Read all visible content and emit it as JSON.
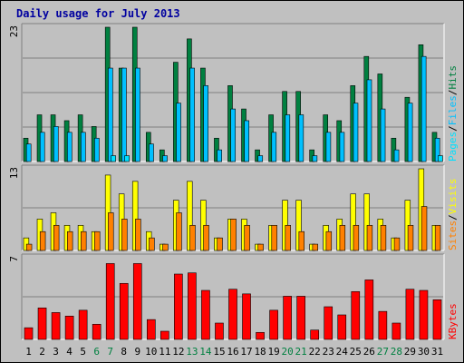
{
  "title": "Daily usage for July 2013",
  "colors": {
    "title": "#0000a0",
    "hits": "#008040",
    "files": "#00c0ff",
    "pages": "#00e0ff",
    "visits": "#ffff00",
    "sites": "#ff8000",
    "kbytes": "#ff0000",
    "weekend_label": "#008040",
    "weekday_label": "#000000"
  },
  "chart_data": [
    {
      "type": "bar",
      "panel": "top",
      "ymax_label": "23",
      "ylim": [
        0,
        23
      ],
      "legend": [
        {
          "label": "Pages",
          "color_key": "pages"
        },
        {
          "label": "Files",
          "color_key": "files"
        },
        {
          "label": "Hits",
          "color_key": "hits"
        }
      ],
      "separators": [
        "/",
        "/"
      ],
      "categories": [
        "1",
        "2",
        "3",
        "4",
        "5",
        "6",
        "7",
        "8",
        "9",
        "10",
        "11",
        "12",
        "13",
        "14",
        "15",
        "16",
        "17",
        "18",
        "19",
        "20",
        "21",
        "22",
        "23",
        "24",
        "25",
        "26",
        "27",
        "28",
        "29",
        "30",
        "31"
      ],
      "series": [
        {
          "name": "Hits",
          "color_key": "hits",
          "values": [
            4,
            8,
            8,
            7,
            8,
            6,
            23,
            16,
            23,
            5,
            2,
            17,
            21,
            16,
            4,
            13,
            9,
            2,
            8,
            12,
            12,
            2,
            8,
            7,
            13,
            18,
            15,
            4,
            11,
            20,
            5
          ]
        },
        {
          "name": "Files",
          "color_key": "files",
          "values": [
            3,
            5,
            6,
            5,
            5,
            4,
            16,
            16,
            16,
            3,
            1,
            10,
            16,
            13,
            2,
            9,
            7,
            1,
            5,
            8,
            8,
            1,
            5,
            5,
            10,
            14,
            9,
            2,
            10,
            18,
            4
          ]
        },
        {
          "name": "Pages",
          "color_key": "pages",
          "values": [
            0,
            0,
            0,
            0,
            0,
            0,
            1,
            1,
            0,
            0,
            0,
            0,
            0,
            0,
            0,
            0,
            0,
            0,
            0,
            0,
            0,
            0,
            0,
            0,
            0,
            0,
            0,
            0,
            0,
            0,
            1
          ]
        }
      ]
    },
    {
      "type": "bar",
      "panel": "middle",
      "ymax_label": "13",
      "ylim": [
        0,
        13
      ],
      "legend": [
        {
          "label": "Sites",
          "color_key": "sites"
        },
        {
          "label": "Visits",
          "color_key": "visits"
        }
      ],
      "separators": [
        "/"
      ],
      "categories": [
        "1",
        "2",
        "3",
        "4",
        "5",
        "6",
        "7",
        "8",
        "9",
        "10",
        "11",
        "12",
        "13",
        "14",
        "15",
        "16",
        "17",
        "18",
        "19",
        "20",
        "21",
        "22",
        "23",
        "24",
        "25",
        "26",
        "27",
        "28",
        "29",
        "30",
        "31"
      ],
      "series": [
        {
          "name": "Visits",
          "color_key": "visits",
          "values": [
            2,
            5,
            6,
            4,
            4,
            3,
            12,
            9,
            11,
            3,
            1,
            8,
            11,
            8,
            2,
            5,
            5,
            1,
            4,
            8,
            8,
            1,
            4,
            5,
            9,
            9,
            5,
            2,
            8,
            13,
            4
          ]
        },
        {
          "name": "Sites",
          "color_key": "sites",
          "values": [
            1,
            3,
            4,
            3,
            3,
            3,
            6,
            5,
            5,
            2,
            1,
            6,
            4,
            4,
            2,
            5,
            4,
            1,
            4,
            4,
            3,
            1,
            3,
            4,
            4,
            4,
            4,
            2,
            4,
            7,
            4
          ]
        }
      ]
    },
    {
      "type": "bar",
      "panel": "bottom",
      "ymax_label": "7",
      "ylim": [
        0,
        7
      ],
      "legend": [
        {
          "label": "KBytes",
          "color_key": "kbytes"
        }
      ],
      "separators": [],
      "categories": [
        "1",
        "2",
        "3",
        "4",
        "5",
        "6",
        "7",
        "8",
        "9",
        "10",
        "11",
        "12",
        "13",
        "14",
        "15",
        "16",
        "17",
        "18",
        "19",
        "20",
        "21",
        "22",
        "23",
        "24",
        "25",
        "26",
        "27",
        "28",
        "29",
        "30",
        "31"
      ],
      "weekend_days": [
        6,
        7,
        13,
        14,
        20,
        21,
        27,
        28
      ],
      "series": [
        {
          "name": "KBytes",
          "color_key": "kbytes",
          "values": [
            1,
            2.7,
            2.3,
            2,
            2.5,
            1.3,
            6.5,
            4.8,
            6.5,
            1.7,
            0.7,
            5.6,
            5.7,
            4.2,
            1.4,
            4.3,
            3.9,
            0.6,
            2.5,
            3.7,
            3.7,
            0.8,
            2.8,
            2.1,
            4.1,
            5.1,
            2.4,
            1.4,
            4.3,
            4.2,
            3.4
          ]
        }
      ]
    }
  ]
}
